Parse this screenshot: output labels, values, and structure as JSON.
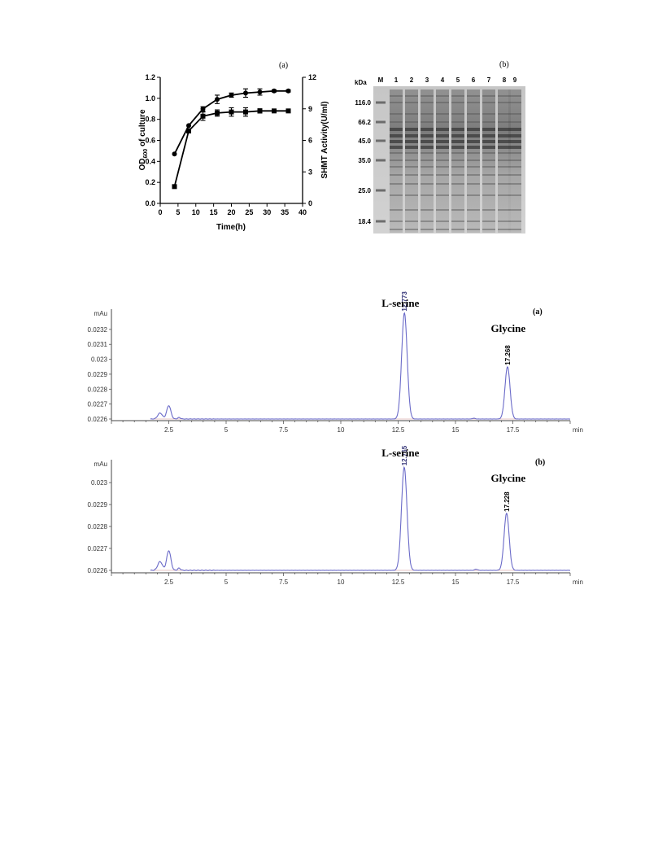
{
  "growth_panel": {
    "label": "(a)"
  },
  "gel_panel": {
    "label": "(b)",
    "unit_label": "kDa",
    "lane_labels": [
      "M",
      "1",
      "2",
      "3",
      "4",
      "5",
      "6",
      "7",
      "8",
      "9"
    ],
    "markers": [
      "116.0",
      "66.2",
      "45.0",
      "35.0",
      "25.0",
      "18.4"
    ]
  },
  "chart_data": [
    {
      "type": "line",
      "title": "",
      "xlabel": "Time(h)",
      "ylabel": "OD600 of culture",
      "ylabel_main": "OD",
      "ylabel_sub": "600",
      "ylabel_rest": " of culture",
      "y2label": "SHMT Activity(U/ml)",
      "x_ticks": [
        "0",
        "5",
        "10",
        "15",
        "20",
        "25",
        "30",
        "35",
        "40"
      ],
      "y_ticks": [
        "0.0",
        "0.2",
        "0.4",
        "0.6",
        "0.8",
        "1.0",
        "1.2"
      ],
      "y2_ticks": [
        "0",
        "3",
        "6",
        "9",
        "12"
      ],
      "xlim": [
        0,
        40
      ],
      "ylim": [
        0,
        1.2
      ],
      "y2lim": [
        0,
        12
      ],
      "series": [
        {
          "axis": "left",
          "marker": "circle",
          "x": [
            4,
            8,
            12,
            16,
            20,
            24,
            28,
            32,
            36
          ],
          "y": [
            0.47,
            0.74,
            0.9,
            0.99,
            1.03,
            1.05,
            1.06,
            1.07,
            1.07
          ],
          "err": [
            0,
            0,
            0.02,
            0.04,
            0.02,
            0.04,
            0.03,
            0.01,
            0.01
          ]
        },
        {
          "axis": "right",
          "marker": "square",
          "x": [
            4,
            8,
            12,
            16,
            20,
            24,
            28,
            32,
            36
          ],
          "y": [
            1.6,
            6.9,
            8.3,
            8.6,
            8.7,
            8.7,
            8.8,
            8.8,
            8.8
          ],
          "err": [
            0,
            0.2,
            0.4,
            0.3,
            0.4,
            0.4,
            0.2,
            0.1,
            0.1
          ]
        }
      ]
    },
    {
      "type": "line",
      "panel_label": "(a)",
      "y_unit": "mAu",
      "x_unit": "min",
      "x_ticks": [
        "2.5",
        "5",
        "7.5",
        "10",
        "12.5",
        "15",
        "17.5"
      ],
      "y_ticks": [
        "0.0226",
        "0.0227",
        "0.0228",
        "0.0229",
        "0.023",
        "0.0231",
        "0.0232"
      ],
      "xlim": [
        0,
        20
      ],
      "ylim": [
        0.0226,
        0.02327
      ],
      "baseline": 0.0226,
      "peaks": [
        {
          "name": "",
          "rt": 2.12,
          "height": 4e-05,
          "width": 0.1
        },
        {
          "name": "",
          "rt": 2.5,
          "height": 9e-05,
          "width": 0.09
        },
        {
          "name": "",
          "rt": 2.95,
          "height": 1e-05,
          "width": 0.06
        },
        {
          "name": "L-serine",
          "rt": 12.773,
          "rt_label": "12.773",
          "height": 0.00071,
          "width": 0.12
        },
        {
          "name": "",
          "rt": 15.8,
          "height": 5e-06,
          "width": 0.06
        },
        {
          "name": "Glycine",
          "rt": 17.268,
          "rt_label": "17.268",
          "height": 0.00035,
          "width": 0.11
        }
      ]
    },
    {
      "type": "line",
      "panel_label": "(b)",
      "y_unit": "mAu",
      "x_unit": "min",
      "x_ticks": [
        "2.5",
        "5",
        "7.5",
        "10",
        "12.5",
        "15",
        "17.5"
      ],
      "y_ticks": [
        "0.0226",
        "0.0227",
        "0.0228",
        "0.0229",
        "0.023"
      ],
      "xlim": [
        0,
        20
      ],
      "ylim": [
        0.0226,
        0.02306
      ],
      "baseline": 0.0226,
      "peaks": [
        {
          "name": "",
          "rt": 2.12,
          "height": 4e-05,
          "width": 0.1
        },
        {
          "name": "",
          "rt": 2.5,
          "height": 9e-05,
          "width": 0.09
        },
        {
          "name": "",
          "rt": 2.95,
          "height": 1e-05,
          "width": 0.06
        },
        {
          "name": "L-serine",
          "rt": 12.765,
          "rt_label": "12.765",
          "height": 0.00047,
          "width": 0.12
        },
        {
          "name": "",
          "rt": 15.9,
          "height": 5e-06,
          "width": 0.06
        },
        {
          "name": "Glycine",
          "rt": 17.228,
          "rt_label": "17.228",
          "height": 0.00026,
          "width": 0.11
        }
      ]
    }
  ]
}
